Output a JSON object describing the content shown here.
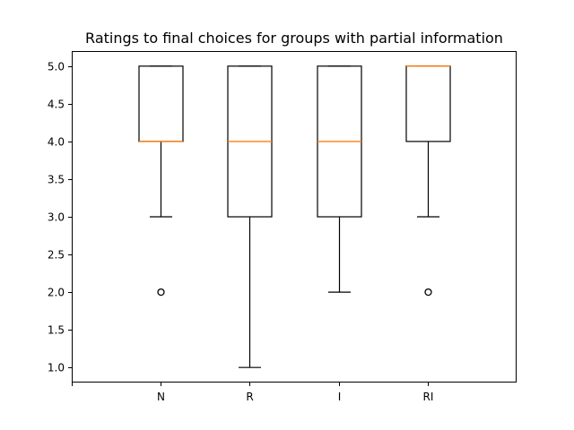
{
  "chart_data": {
    "type": "box",
    "title": "Ratings to final choices for groups with partial information",
    "xlabel": "",
    "ylabel": "",
    "ylim": [
      0.8,
      5.2
    ],
    "y_ticks": [
      "1.0",
      "1.5",
      "2.0",
      "2.5",
      "3.0",
      "3.5",
      "4.0",
      "4.5",
      "5.0"
    ],
    "x_ticks": [
      "",
      "N",
      "R",
      "I",
      "RI"
    ],
    "grid": false,
    "series": [
      {
        "category": "N",
        "whisker_low": 3,
        "q1": 4,
        "median": 4,
        "q3": 5,
        "whisker_high": 5,
        "outliers": [
          2
        ]
      },
      {
        "category": "R",
        "whisker_low": 1,
        "q1": 3,
        "median": 4,
        "q3": 5,
        "whisker_high": 5,
        "outliers": []
      },
      {
        "category": "I",
        "whisker_low": 2,
        "q1": 3,
        "median": 4,
        "q3": 5,
        "whisker_high": 5,
        "outliers": []
      },
      {
        "category": "RI",
        "whisker_low": 3,
        "q1": 4,
        "median": 5,
        "q3": 5,
        "whisker_high": 5,
        "outliers": [
          2
        ]
      }
    ],
    "colors": {
      "box": "#000000",
      "median": "#ff7f0e",
      "outlier": "#000000"
    }
  }
}
